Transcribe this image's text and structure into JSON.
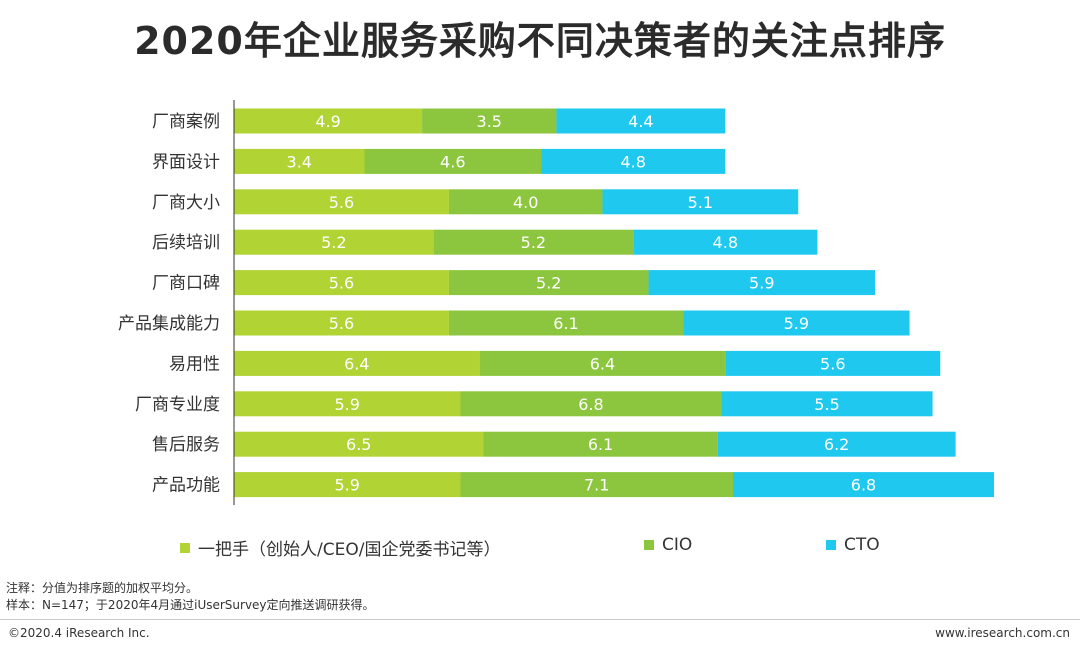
{
  "title": "2020年企业服务采购不同决策者的关注点排序",
  "colors": {
    "founder": "#b1d334",
    "cio": "#8cc63e",
    "cto": "#1fc8ef"
  },
  "chart_data": {
    "type": "bar",
    "orientation": "horizontal",
    "stacked": true,
    "categories": [
      "厂商案例",
      "界面设计",
      "厂商大小",
      "后续培训",
      "厂商口碑",
      "产品集成能力",
      "易用性",
      "厂商专业度",
      "售后服务",
      "产品功能"
    ],
    "series": [
      {
        "name": "一把手（创始人/CEO/国企党委书记等）",
        "values": [
          4.9,
          3.4,
          5.6,
          5.2,
          5.6,
          5.6,
          6.4,
          5.9,
          6.5,
          5.9
        ]
      },
      {
        "name": "CIO",
        "values": [
          3.5,
          4.6,
          4.0,
          5.2,
          5.2,
          6.1,
          6.4,
          6.8,
          6.1,
          7.1
        ]
      },
      {
        "name": "CTO",
        "values": [
          4.4,
          4.8,
          5.1,
          4.8,
          5.9,
          5.9,
          5.6,
          5.5,
          6.2,
          6.8
        ]
      }
    ],
    "data_labels": true,
    "grid": false,
    "legend_position": "bottom"
  },
  "legend": [
    "一把手（创始人/CEO/国企党委书记等）",
    "CIO",
    "CTO"
  ],
  "notes": {
    "line1": "注释：分值为排序题的加权平均分。",
    "line2": "样本：N=147；于2020年4月通过iUserSurvey定向推送调研获得。"
  },
  "footer": {
    "copyright": "©2020.4 iResearch Inc.",
    "website": "www.iresearch.com.cn"
  }
}
